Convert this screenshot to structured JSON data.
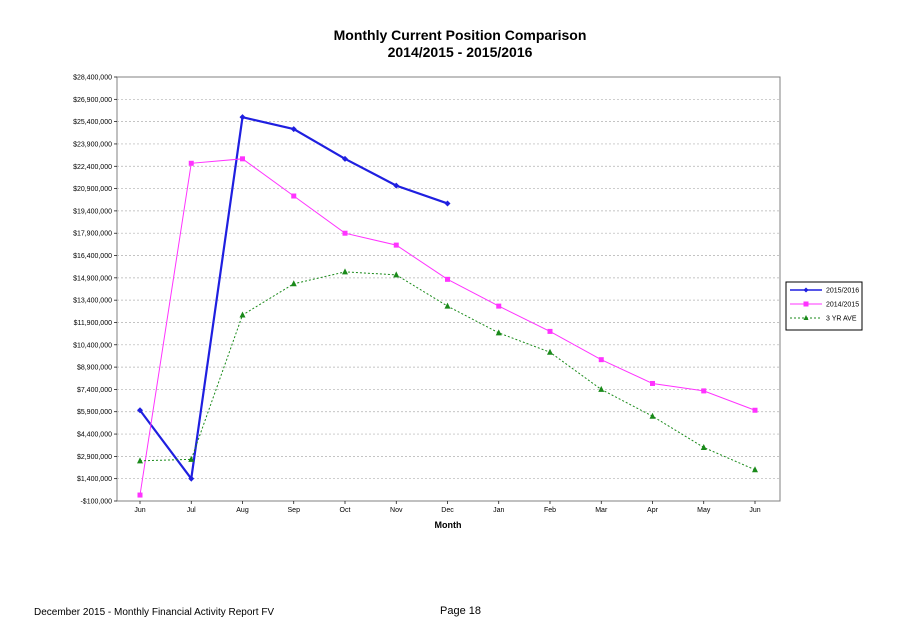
{
  "chart_data": {
    "type": "line",
    "title": "Monthly Current Position Comparison",
    "subtitle": "2014/2015 - 2015/2016",
    "xlabel": "Month",
    "ylabel": "",
    "categories": [
      "Jun",
      "Jul",
      "Aug",
      "Sep",
      "Oct",
      "Nov",
      "Dec",
      "Jan",
      "Feb",
      "Mar",
      "Apr",
      "May",
      "Jun"
    ],
    "y_ticks": [
      "-$100,000",
      "$1,400,000",
      "$2,900,000",
      "$4,400,000",
      "$5,900,000",
      "$7,400,000",
      "$8,900,000",
      "$10,400,000",
      "$11,900,000",
      "$13,400,000",
      "$14,900,000",
      "$16,400,000",
      "$17,900,000",
      "$19,400,000",
      "$20,900,000",
      "$22,400,000",
      "$23,900,000",
      "$25,400,000",
      "$26,900,000",
      "$28,400,000"
    ],
    "ylim": [
      -100000,
      28400000
    ],
    "grid": true,
    "legend_position": "right",
    "series": [
      {
        "name": "2015/2016",
        "color": "#1f1fe0",
        "marker": "diamond",
        "dash": false,
        "values": [
          6000000,
          1400000,
          25700000,
          24900000,
          22900000,
          21100000,
          19900000,
          null,
          null,
          null,
          null,
          null,
          null
        ]
      },
      {
        "name": "2014/2015",
        "color": "#ff33ff",
        "marker": "square",
        "dash": false,
        "values": [
          300000,
          22600000,
          22900000,
          20400000,
          17900000,
          17100000,
          14800000,
          13000000,
          11300000,
          9400000,
          7800000,
          7300000,
          6000000
        ]
      },
      {
        "name": "3 YR AVE",
        "color": "#1a8a1a",
        "marker": "triangle",
        "dash": true,
        "values": [
          2600000,
          2700000,
          12400000,
          14500000,
          15300000,
          15100000,
          13000000,
          11200000,
          9900000,
          7400000,
          5600000,
          3500000,
          2000000
        ]
      }
    ]
  },
  "footer": {
    "left": "December 2015 - Monthly Financial Activity Report FV",
    "page": "Page 18"
  }
}
